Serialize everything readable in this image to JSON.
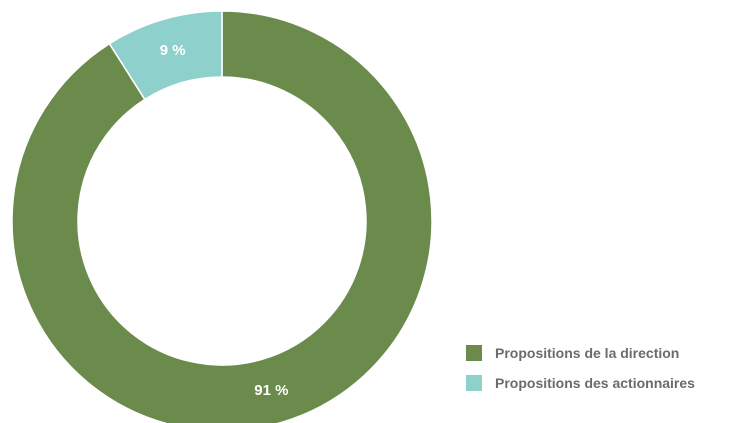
{
  "chart_data": {
    "type": "pie",
    "variant": "donut",
    "title": "",
    "categories": [
      "Propositions de la direction",
      "Propositions des actionnaires"
    ],
    "values": [
      91,
      9
    ],
    "labels": [
      "91 %",
      "9 %"
    ],
    "colors": [
      "#6a8b4c",
      "#8ed0cb"
    ],
    "legend": {
      "position": "bottom-right",
      "items": [
        {
          "label": "Propositions de la direction",
          "color": "#6a8b4c"
        },
        {
          "label": "Propositions des actionnaires",
          "color": "#8ed0cb"
        }
      ]
    }
  }
}
